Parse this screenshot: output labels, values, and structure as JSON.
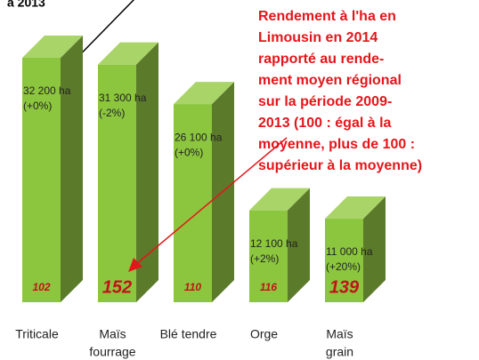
{
  "chart_data": {
    "type": "bar3d",
    "categories": [
      [
        "Triticale"
      ],
      [
        "Maïs",
        "fourrage"
      ],
      [
        "Blé tendre"
      ],
      [
        "Orge"
      ],
      [
        "Maïs",
        "grain"
      ]
    ],
    "values": [
      32200,
      31300,
      26100,
      12100,
      11000
    ],
    "value_labels": [
      "32 200 ha",
      "31 300 ha",
      "26 100 ha",
      "12 100 ha",
      "11 000 ha"
    ],
    "change_labels": [
      "(+0%)",
      "(-2%)",
      "(+0%)",
      "(+2%)",
      "(+20%)"
    ],
    "indices": [
      102,
      152,
      110,
      116,
      139
    ],
    "index_large": [
      false,
      true,
      false,
      false,
      true
    ],
    "color": "#8cc63e",
    "top_note": "à 2013",
    "annotation": [
      "Rendement à l'ha en",
      "Limousin en 2014",
      "rapporté au rende-",
      "ment moyen régional",
      "sur la période 2009-",
      "2013 (100 : égal à la",
      "moyenne, plus de 100 :",
      "supérieur à la moyenne)"
    ]
  }
}
